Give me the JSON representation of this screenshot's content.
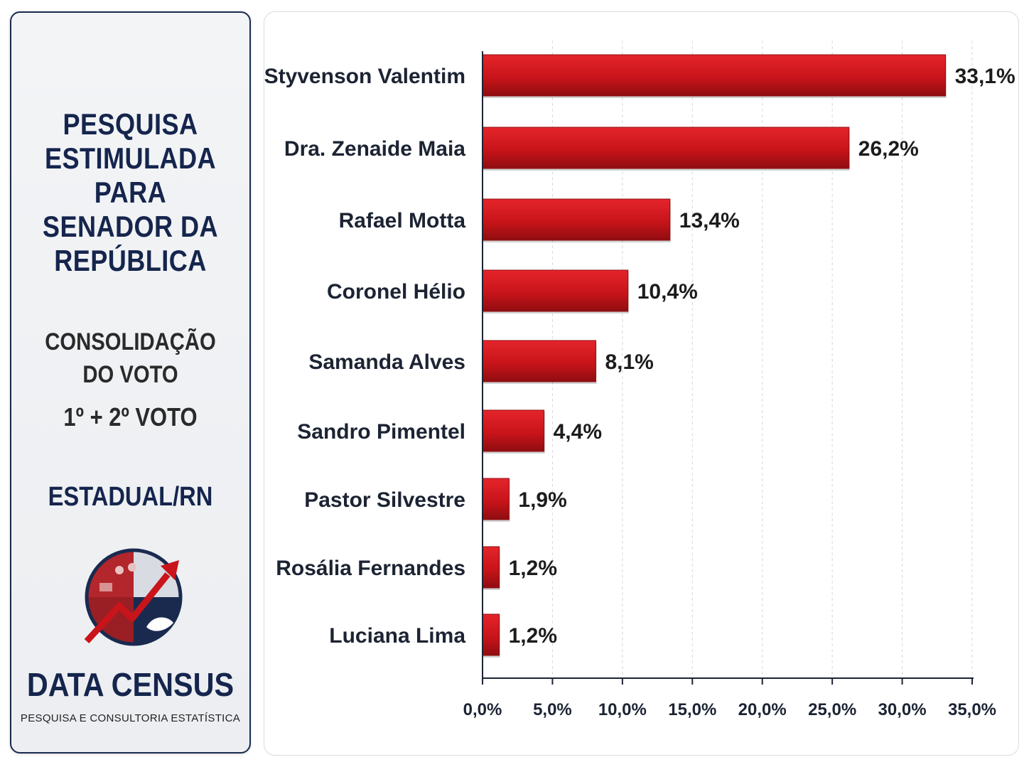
{
  "side_panel": {
    "title_lines": [
      "PESQUISA",
      "ESTIMULADA",
      "PARA",
      "SENADOR DA",
      "REPÚBLICA"
    ],
    "subtitle_lines": [
      "CONSOLIDAÇÃO",
      "DO VOTO"
    ],
    "vote_label": "1º + 2º VOTO",
    "scope": "ESTADUAL/RN",
    "brand": "DATA CENSUS",
    "brand_tagline": "PESQUISA E CONSULTORIA ESTATÍSTICA"
  },
  "colors": {
    "bar": "#c8141a",
    "bar_dark": "#8f0d10",
    "navy": "#15254d"
  },
  "chart_data": {
    "type": "bar",
    "orientation": "horizontal",
    "categories": [
      "Styvenson Valentim",
      "Dra. Zenaide Maia",
      "Rafael Motta",
      "Coronel Hélio",
      "Samanda Alves",
      "Sandro Pimentel",
      "Pastor Silvestre",
      "Rosália Fernandes",
      "Luciana Lima"
    ],
    "values": [
      33.1,
      26.2,
      13.4,
      10.4,
      8.1,
      4.4,
      1.9,
      1.2,
      1.2
    ],
    "value_labels": [
      "33,1%",
      "26,2%",
      "13,4%",
      "10,4%",
      "8,1%",
      "4,4%",
      "1,9%",
      "1,2%",
      "1,2%"
    ],
    "xlim": [
      0,
      35
    ],
    "x_ticks": [
      0,
      5,
      10,
      15,
      20,
      25,
      30,
      35
    ],
    "x_tick_labels": [
      "0,0%",
      "5,0%",
      "10,0%",
      "15,0%",
      "20,0%",
      "25,0%",
      "30,0%",
      "35,0%"
    ],
    "grid": "vertical dashed",
    "legend": "none"
  }
}
